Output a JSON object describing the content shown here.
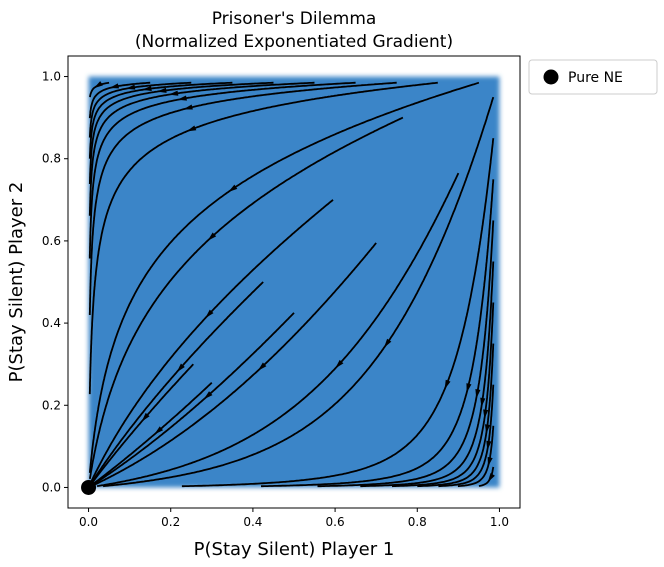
{
  "chart_data": {
    "type": "streamplot",
    "title": [
      "Prisoner's Dilemma",
      "(Normalized Exponentiated Gradient)"
    ],
    "xlabel": "P(Stay Silent) Player 1",
    "ylabel": "P(Stay Silent) Player 2",
    "xlim": [
      -0.05,
      1.05
    ],
    "ylim": [
      -0.05,
      1.05
    ],
    "xticks": [
      "0.0",
      "0.2",
      "0.4",
      "0.6",
      "0.8",
      "1.0"
    ],
    "yticks": [
      "0.0",
      "0.2",
      "0.4",
      "0.6",
      "0.8",
      "1.0"
    ],
    "grid": false,
    "legend": {
      "placement": "outside-top-right",
      "entries": [
        "Pure NE"
      ]
    },
    "field_region": {
      "x": [
        0,
        1
      ],
      "y": [
        0,
        1
      ],
      "color": "#3a85c8"
    },
    "stream_color": "#000000",
    "points": [
      {
        "name": "Pure NE",
        "x": 0.0,
        "y": 0.0,
        "color": "#000000"
      }
    ]
  }
}
